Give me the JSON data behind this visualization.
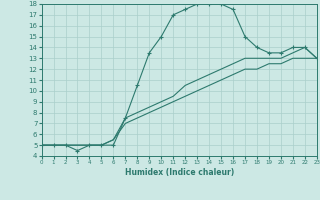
{
  "xlabel": "Humidex (Indice chaleur)",
  "bg_color": "#cce8e4",
  "grid_color": "#aacfcb",
  "line_color": "#2d7a6e",
  "xlim": [
    0,
    23
  ],
  "ylim": [
    4,
    18
  ],
  "xticks": [
    0,
    1,
    2,
    3,
    4,
    5,
    6,
    7,
    8,
    9,
    10,
    11,
    12,
    13,
    14,
    15,
    16,
    17,
    18,
    19,
    20,
    21,
    22,
    23
  ],
  "yticks": [
    4,
    5,
    6,
    7,
    8,
    9,
    10,
    11,
    12,
    13,
    14,
    15,
    16,
    17,
    18
  ],
  "line1_x": [
    0,
    1,
    2,
    3,
    4,
    5,
    6,
    7,
    8,
    9,
    10,
    11,
    12,
    13,
    14,
    15,
    16,
    17,
    18,
    19,
    20,
    21,
    22,
    23
  ],
  "line1_y": [
    5.0,
    5.0,
    5.0,
    4.5,
    5.0,
    5.0,
    5.0,
    7.5,
    10.5,
    13.5,
    15.0,
    17.0,
    17.5,
    18.0,
    18.0,
    18.0,
    17.5,
    15.0,
    14.0,
    13.5,
    13.5,
    14.0,
    14.0,
    13.0
  ],
  "line2_x": [
    0,
    1,
    2,
    3,
    4,
    5,
    6,
    7,
    8,
    9,
    10,
    11,
    12,
    13,
    14,
    15,
    16,
    17,
    18,
    19,
    20,
    21,
    22,
    23
  ],
  "line2_y": [
    5.0,
    5.0,
    5.0,
    5.0,
    5.0,
    5.0,
    5.5,
    7.5,
    8.0,
    8.5,
    9.0,
    9.5,
    10.5,
    11.0,
    11.5,
    12.0,
    12.5,
    13.0,
    13.0,
    13.0,
    13.0,
    13.5,
    14.0,
    13.0
  ],
  "line3_x": [
    0,
    1,
    2,
    3,
    4,
    5,
    6,
    7,
    8,
    9,
    10,
    11,
    12,
    13,
    14,
    15,
    16,
    17,
    18,
    19,
    20,
    21,
    22,
    23
  ],
  "line3_y": [
    5.0,
    5.0,
    5.0,
    5.0,
    5.0,
    5.0,
    5.5,
    7.0,
    7.5,
    8.0,
    8.5,
    9.0,
    9.5,
    10.0,
    10.5,
    11.0,
    11.5,
    12.0,
    12.0,
    12.5,
    12.5,
    13.0,
    13.0,
    13.0
  ]
}
